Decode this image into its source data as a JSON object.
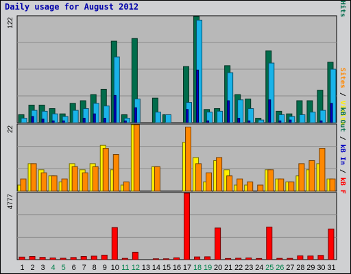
{
  "title": "Daily usage for August 2012",
  "colors": {
    "hits": "#006c4b",
    "files": "#19b3e9",
    "pages": "#0000c0",
    "visits": "#fff000",
    "sites": "#ff8800",
    "kbin": "#0000c0",
    "kbout": "#006c4b",
    "kbf": "#ff0000",
    "panel": "#b8b8b8",
    "grid": "#8a8a8a",
    "day_weekday": "#000000",
    "day_weekend": "#00804a"
  },
  "chart_data": {
    "type": "bar",
    "categories": [
      "1",
      "2",
      "3",
      "4",
      "5",
      "6",
      "7",
      "8",
      "9",
      "10",
      "11",
      "12",
      "13",
      "14",
      "15",
      "16",
      "17",
      "18",
      "19",
      "20",
      "21",
      "22",
      "23",
      "24",
      "25",
      "26",
      "27",
      "28",
      "29",
      "30",
      "31"
    ],
    "weekend_days": [
      "4",
      "5",
      "11",
      "12",
      "18",
      "19",
      "25",
      "26"
    ],
    "panels": [
      {
        "name": "hits-files-pages",
        "ymax_label": "122",
        "ylim": [
          0,
          122
        ],
        "right_label": [
          {
            "text": "Hits",
            "key": "hits"
          },
          {
            "text": " / ",
            "key": "sep"
          },
          {
            "text": "Files",
            "key": "files"
          },
          {
            "text": " / ",
            "key": "sep"
          },
          {
            "text": "Pages",
            "key": "pages"
          }
        ],
        "series": [
          {
            "key": "hits",
            "values": [
              9,
              20,
              20,
              16,
              10,
              22,
              25,
              32,
              38,
              93,
              9,
              96,
              0,
              28,
              9,
              0,
              64,
              127,
              15,
              16,
              65,
              32,
              27,
              5,
              82,
              13,
              10,
              25,
              25,
              37,
              69
            ]
          },
          {
            "key": "files",
            "values": [
              5,
              14,
              13,
              10,
              7,
              14,
              16,
              22,
              19,
              75,
              5,
              27,
              0,
              12,
              9,
              0,
              23,
              117,
              12,
              13,
              57,
              26,
              16,
              3,
              68,
              9,
              7,
              9,
              12,
              14,
              61
            ]
          },
          {
            "key": "pages",
            "values": [
              0,
              7,
              4,
              2,
              2,
              0,
              5,
              10,
              5,
              31,
              2,
              17,
              0,
              0,
              0,
              0,
              15,
              60,
              2,
              0,
              25,
              5,
              2,
              0,
              26,
              2,
              3,
              0,
              0,
              2,
              22
            ]
          }
        ]
      },
      {
        "name": "visits-sites",
        "ymax_label": "22",
        "ylim": [
          0,
          22
        ],
        "right_label": [
          {
            "text": "Visits",
            "key": "visits"
          },
          {
            "text": " / ",
            "key": "sep"
          },
          {
            "text": "Sites",
            "key": "sites"
          }
        ],
        "series": [
          {
            "key": "visits",
            "values": [
              2,
              9,
              7,
              5,
              3,
              9,
              7,
              9,
              15,
              7,
              2,
              23,
              0,
              8,
              0,
              0,
              16,
              11,
              3,
              10,
              7,
              2,
              2,
              0,
              7,
              4,
              3,
              5,
              7,
              9,
              4
            ]
          },
          {
            "key": "sites",
            "values": [
              4,
              9,
              6,
              5,
              4,
              8,
              6,
              8,
              14,
              12,
              3,
              22,
              0,
              8,
              0,
              0,
              21,
              9,
              6,
              11,
              5,
              4,
              3,
              2,
              7,
              4,
              3,
              9,
              10,
              14,
              4
            ]
          }
        ]
      },
      {
        "name": "kbytes",
        "ymax_label": "4777",
        "ylim": [
          0,
          4777
        ],
        "right_label": [
          {
            "text": "kB F",
            "key": "kbf"
          },
          {
            "text": " / ",
            "key": "sep"
          },
          {
            "text": "kB In",
            "key": "kbin"
          },
          {
            "text": " / ",
            "key": "sep"
          },
          {
            "text": "kB Out",
            "key": "kbout"
          }
        ],
        "series": [
          {
            "key": "kbf",
            "values": [
              180,
              220,
              160,
              120,
              100,
              150,
              220,
              250,
              320,
              2280,
              90,
              520,
              0,
              60,
              60,
              130,
              4750,
              190,
              200,
              2250,
              80,
              100,
              120,
              80,
              2320,
              90,
              90,
              270,
              260,
              300,
              2180
            ]
          }
        ]
      }
    ]
  }
}
